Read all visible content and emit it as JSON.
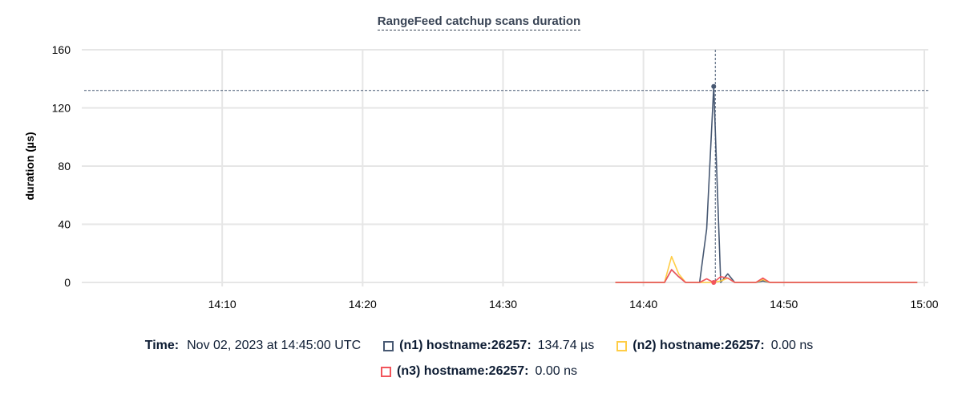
{
  "chart_data": {
    "type": "line",
    "title": "RangeFeed catchup scans duration",
    "ylabel": "duration (µs)",
    "xlabel": "",
    "ylim": [
      0,
      160
    ],
    "yticks": [
      "0",
      "40",
      "80",
      "120",
      "160"
    ],
    "ytick_values": [
      0,
      40,
      80,
      120,
      160
    ],
    "xlim": [
      "14:00",
      "15:00"
    ],
    "xticks": [
      "14:10",
      "14:20",
      "14:30",
      "14:40",
      "14:50",
      "15:00"
    ],
    "grid": true,
    "x": [
      "14:38:00",
      "14:38:30",
      "14:39:00",
      "14:39:30",
      "14:40:00",
      "14:40:30",
      "14:41:00",
      "14:41:30",
      "14:42:00",
      "14:42:30",
      "14:43:00",
      "14:43:30",
      "14:44:00",
      "14:44:30",
      "14:45:00",
      "14:45:30",
      "14:46:00",
      "14:46:30",
      "14:47:00",
      "14:47:30",
      "14:48:00",
      "14:48:30",
      "14:49:00",
      "14:49:30",
      "14:50:00",
      "14:50:30",
      "14:51:00",
      "14:51:30",
      "14:52:00",
      "14:52:30",
      "14:53:00",
      "14:53:30",
      "14:54:00",
      "14:54:30",
      "14:55:00",
      "14:55:30",
      "14:56:00",
      "14:56:30",
      "14:57:00",
      "14:57:30",
      "14:58:00",
      "14:58:30",
      "14:59:00",
      "14:59:30"
    ],
    "series": [
      {
        "name": "(n1) hostname:26257",
        "color": "#475872",
        "values": [
          0,
          0,
          0,
          0,
          0,
          0,
          0,
          0,
          8.8,
          4,
          0,
          0,
          0,
          36.8,
          134.74,
          0,
          5.9,
          0,
          0,
          0,
          0,
          1,
          0,
          0,
          0,
          0,
          0,
          0,
          0,
          0,
          0,
          0,
          0,
          0,
          0,
          0,
          0,
          0,
          0,
          0,
          0,
          0,
          0,
          0
        ]
      },
      {
        "name": "(n2) hostname:26257",
        "color": "#ffcd46",
        "values": [
          0,
          0,
          0,
          0,
          0,
          0,
          0,
          0,
          17.8,
          6,
          0,
          0,
          0,
          0,
          0,
          1,
          3,
          0,
          0,
          0,
          0,
          2,
          0,
          0,
          0,
          0,
          0,
          0,
          0,
          0,
          0,
          0,
          0,
          0,
          0,
          0,
          0,
          0,
          0,
          0,
          0,
          0,
          0,
          0
        ]
      },
      {
        "name": "(n3) hostname:26257",
        "color": "#f2545b",
        "values": [
          0,
          0,
          0,
          0,
          0,
          0,
          0,
          0,
          8.8,
          4,
          0,
          0,
          0,
          2.5,
          0,
          4,
          3,
          0,
          0,
          0,
          0,
          3,
          0,
          0,
          0,
          0,
          0,
          0,
          0,
          0,
          0,
          0,
          0,
          0,
          0,
          0,
          0,
          0,
          0,
          0,
          0,
          0,
          0,
          0
        ]
      }
    ],
    "hover": {
      "x": "14:45:00",
      "crosshair_y": 132
    }
  },
  "legend": {
    "time_label": "Time:",
    "time_value": "Nov 02, 2023 at 14:45:00 UTC",
    "items": [
      {
        "name": "(n1) hostname:26257:",
        "value": "134.74 µs",
        "color": "#475872"
      },
      {
        "name": "(n2) hostname:26257:",
        "value": "0.00 ns",
        "color": "#ffcd46"
      },
      {
        "name": "(n3) hostname:26257:",
        "value": "0.00 ns",
        "color": "#f2545b"
      }
    ]
  }
}
